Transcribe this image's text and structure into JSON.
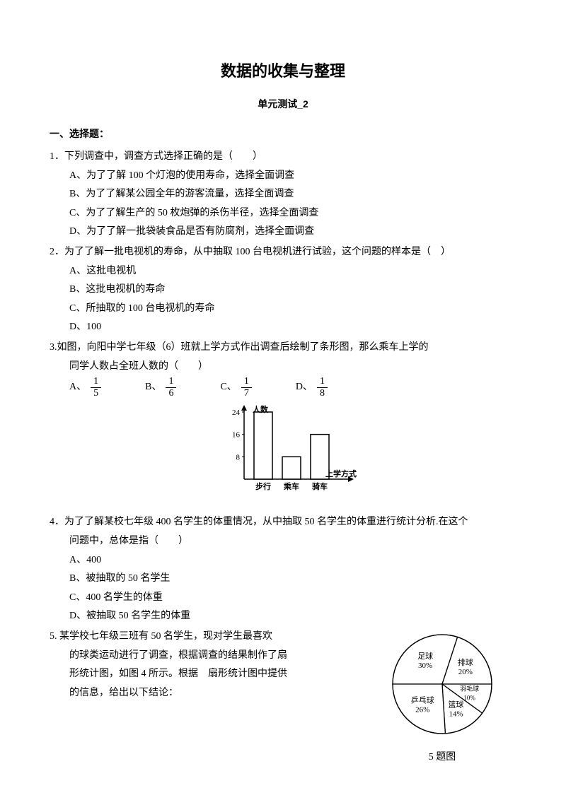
{
  "title": "数据的收集与整理",
  "subtitle": "单元测试_2",
  "section1": "一、选择题：",
  "q1": {
    "stem": "1．下列调查中，调查方式选择正确的是（　　）",
    "A": "A、为了了解 100 个灯泡的使用寿命，选择全面调查",
    "B": "B、为了了解某公园全年的游客流量，选择全面调查",
    "C": "C、为了了解生产的 50 枚炮弹的杀伤半径，选择全面调查",
    "D": "D、为了了解一批袋装食品是否有防腐剂，选择全面调查"
  },
  "q2": {
    "stem": "2．为了了解一批电视机的寿命，从中抽取 100 台电视机进行试验，这个问题的样本是（　）",
    "A": "A、这批电视机",
    "B": "B、这批电视机的寿命",
    "C": "C、所抽取的 100 台电视机的寿命",
    "D": "D、100"
  },
  "q3": {
    "stem1": "3.如图，向阳中学七年级（6）班就上学方式作出调查后绘制了条形图，那么乘车上学的",
    "stem2": "同学人数占全班人数的（　　）",
    "A": "A、",
    "B": "B、",
    "C": "C、",
    "D": "D、",
    "fracs": {
      "a": {
        "n": "1",
        "d": "5"
      },
      "b": {
        "n": "1",
        "d": "6"
      },
      "c": {
        "n": "1",
        "d": "7"
      },
      "d": {
        "n": "1",
        "d": "8"
      }
    }
  },
  "barchart": {
    "type": "bar",
    "y_label": "人数",
    "x_label": "上学方式",
    "categories": [
      "步行",
      "乘车",
      "骑车"
    ],
    "values": [
      24,
      8,
      16
    ],
    "yticks": [
      8,
      16,
      24
    ],
    "bar_fill": "#ffffff",
    "bar_stroke": "#000000",
    "axis_color": "#000000",
    "text_color": "#000000",
    "fontsize": 11
  },
  "q4": {
    "stem1": "4．为了了解某校七年级 400 名学生的体重情况，从中抽取 50 名学生的体重进行统计分析.在这个",
    "stem2": "问题中，总体是指（　　）",
    "A": "A、400",
    "B": "B、被抽取的 50 名学生",
    "C": "C、400 名学生的体重",
    "D": "D、被抽取 50 名学生的体重"
  },
  "q5": {
    "stem1": "5. 某学校七年级三班有 50 名学生，现对学生最喜欢",
    "stem2": "的球类运动进行了调查，根据调查的结果制作了扇",
    "stem3": "形统计图，如图 4 所示。根据　扇形统计图中提供",
    "stem4": "的信息，给出以下结论："
  },
  "piechart": {
    "type": "pie",
    "caption": "5 题图",
    "slices": [
      {
        "label": "足球",
        "value": 30,
        "text": "足球",
        "pct": "30%"
      },
      {
        "label": "排球",
        "value": 20,
        "text": "排球",
        "pct": "20%"
      },
      {
        "label": "羽毛球",
        "value": 10,
        "text": "羽毛球",
        "pct": "10%"
      },
      {
        "label": "篮球",
        "value": 14,
        "text": "篮球",
        "pct": "14%"
      },
      {
        "label": "乒乓球",
        "value": 26,
        "text": "乒乓球",
        "pct": "26%"
      }
    ],
    "stroke": "#000000",
    "fill": "#ffffff",
    "fontsize": 11
  }
}
